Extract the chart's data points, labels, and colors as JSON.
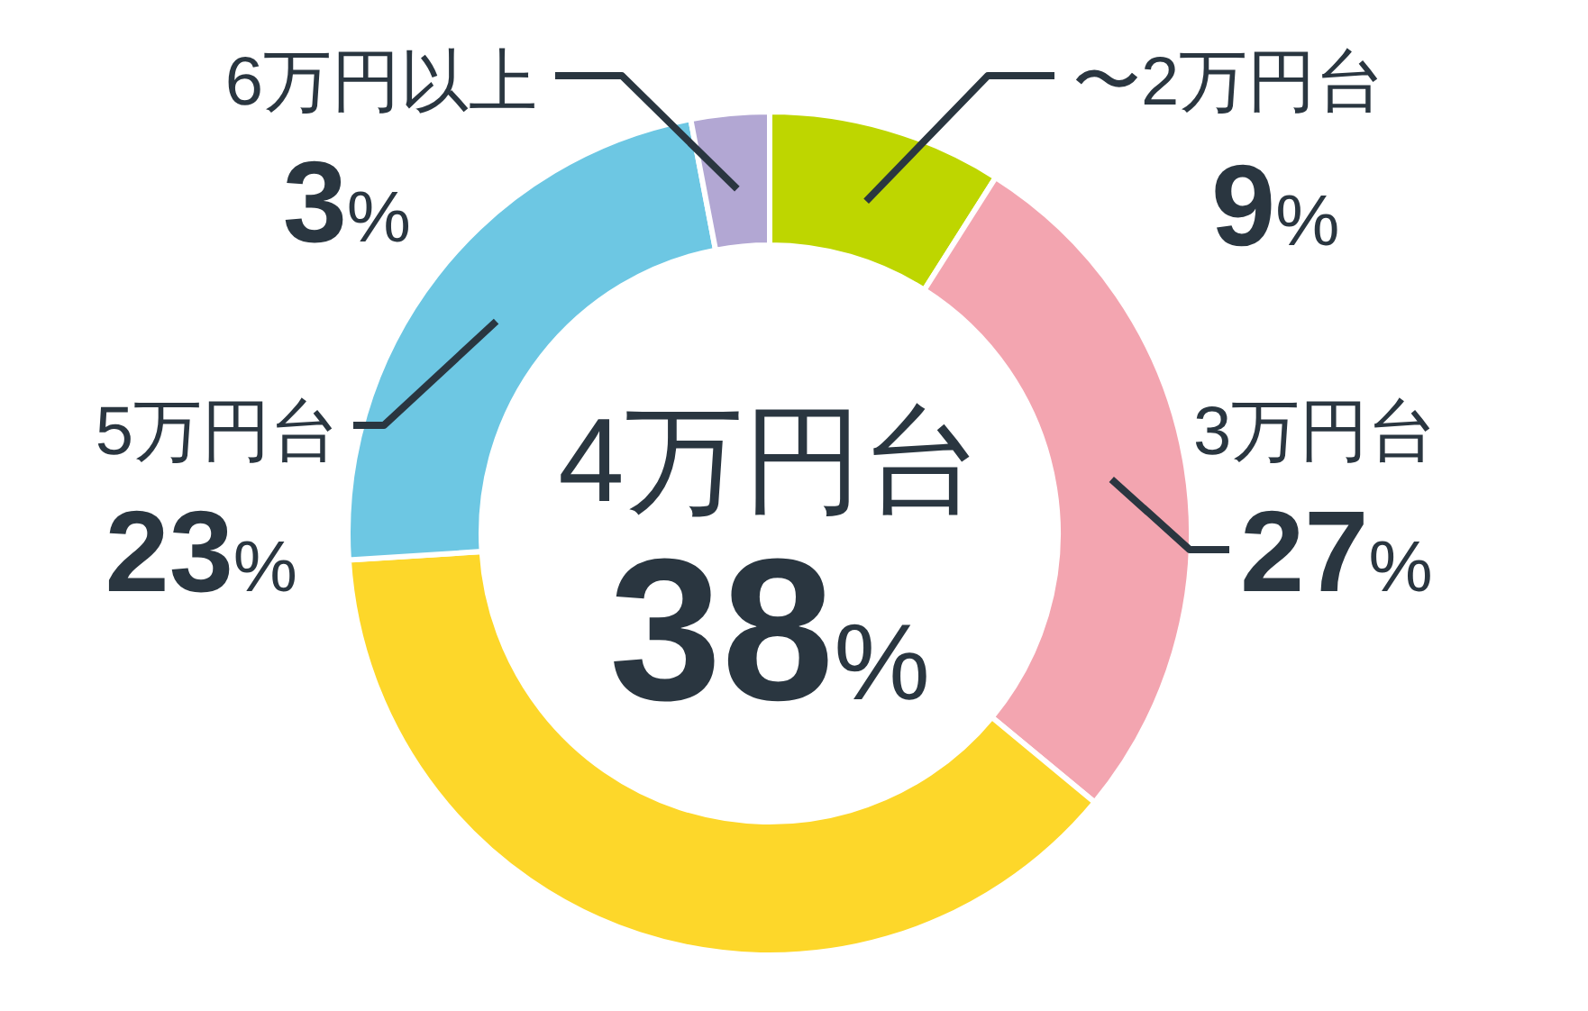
{
  "chart_data": {
    "type": "donut",
    "categories": [
      "〜2万円台",
      "3万円台",
      "4万円台",
      "5万円台",
      "6万円以上"
    ],
    "values": [
      9,
      27,
      38,
      23,
      3
    ],
    "colors": [
      "#bed600",
      "#f3a5b0",
      "#fdd72a",
      "#6dc7e3",
      "#b2a7d3"
    ],
    "value_labels": [
      "9%",
      "27%",
      "38%",
      "23%",
      "3%"
    ]
  }
}
